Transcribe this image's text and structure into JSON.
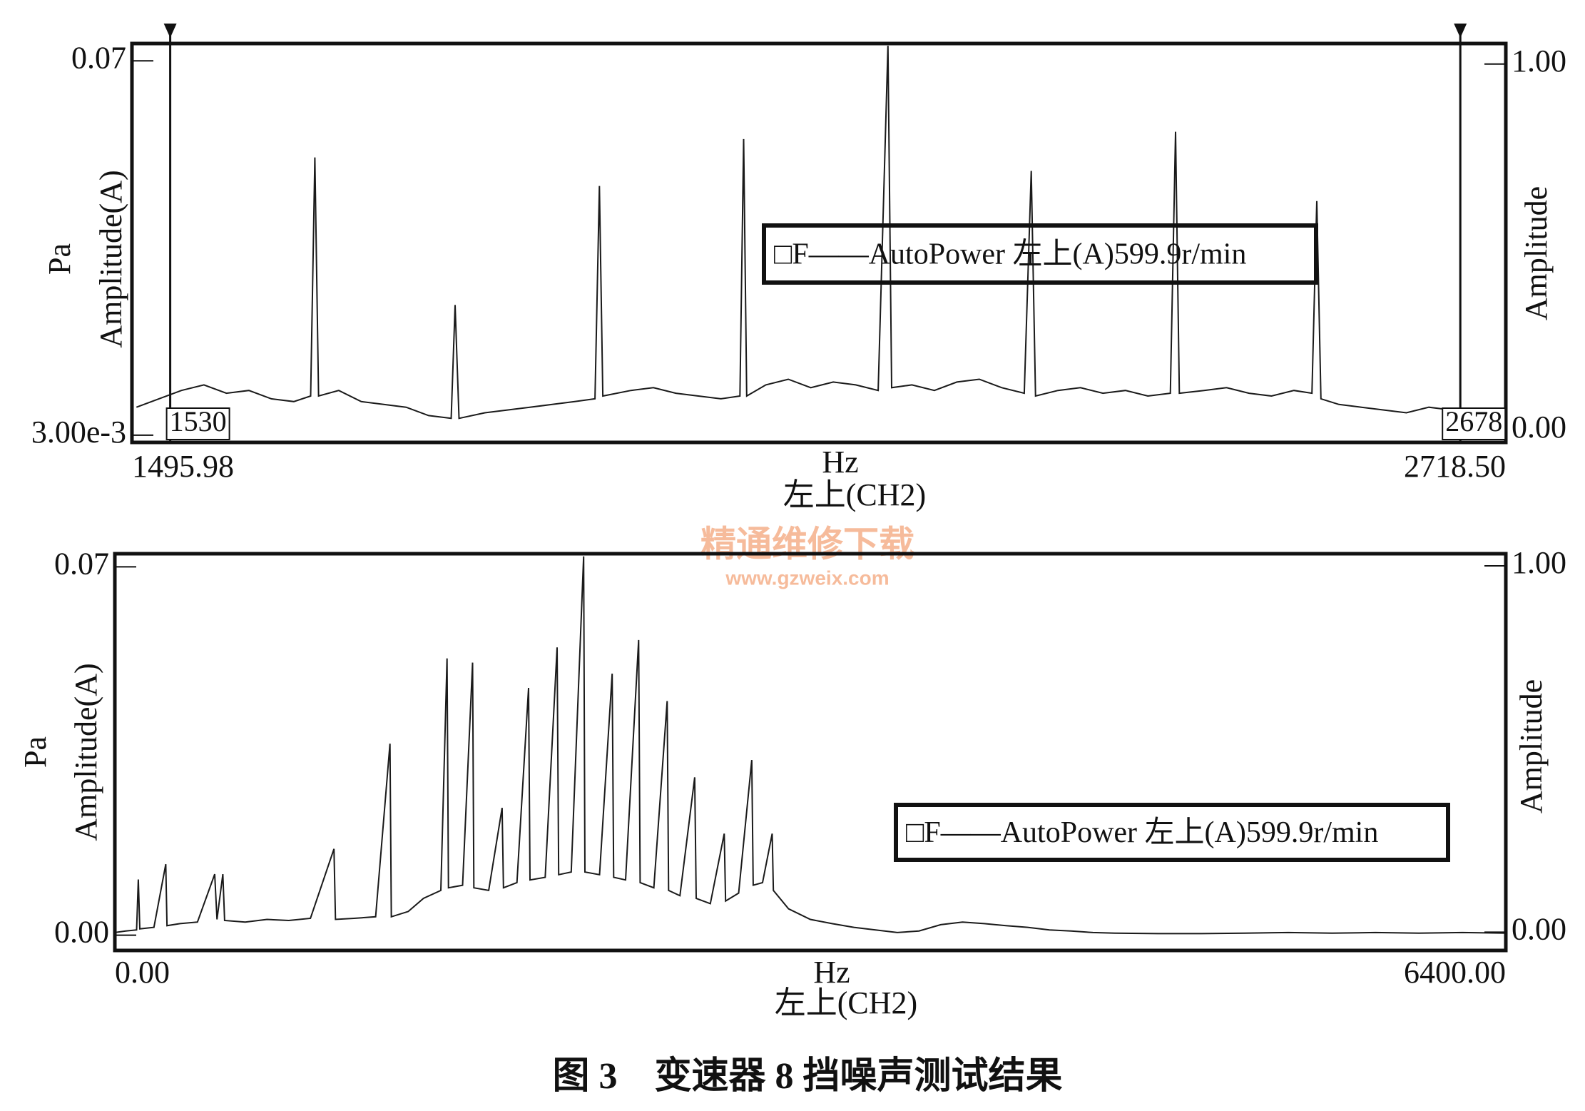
{
  "chart_data": [
    {
      "type": "line",
      "series": [
        {
          "name": "□F——AutoPower 左上(A)599.9r/min",
          "color": "#1a1a1a",
          "values": [
            0.008,
            0.0095,
            0.011,
            0.012,
            0.0105,
            0.011,
            0.0095,
            0.009,
            0.01,
            0.0527,
            0.01,
            0.011,
            0.009,
            0.0085,
            0.008,
            0.0065,
            0.006,
            0.0263,
            0.006,
            0.007,
            0.0075,
            0.008,
            0.0085,
            0.009,
            0.0095,
            0.0476,
            0.01,
            0.011,
            0.0115,
            0.0105,
            0.01,
            0.0095,
            0.01,
            0.056,
            0.01,
            0.012,
            0.013,
            0.0115,
            0.0125,
            0.012,
            0.011,
            0.0727,
            0.0115,
            0.012,
            0.011,
            0.0125,
            0.013,
            0.0115,
            0.0105,
            0.0503,
            0.01,
            0.011,
            0.0115,
            0.0105,
            0.011,
            0.01,
            0.0105,
            0.0573,
            0.0105,
            0.011,
            0.0115,
            0.0105,
            0.01,
            0.011,
            0.0105,
            0.0449,
            0.0095,
            0.0085,
            0.008,
            0.0075,
            0.007,
            0.008,
            0.0075,
            0.007,
            0.0075
          ]
        }
      ],
      "x": [
        1500,
        1520,
        1540,
        1560,
        1580,
        1600,
        1620,
        1640,
        1655,
        1658.7,
        1662,
        1680,
        1700,
        1720,
        1740,
        1760,
        1780,
        1783.5,
        1787,
        1810,
        1830,
        1850,
        1870,
        1890,
        1908,
        1911.9,
        1915,
        1940,
        1960,
        1980,
        2000,
        2020,
        2037,
        2040.3,
        2043,
        2060,
        2080,
        2100,
        2120,
        2140,
        2160,
        2168.7,
        2172,
        2190,
        2210,
        2230,
        2250,
        2270,
        2290,
        2296.2,
        2300,
        2320,
        2340,
        2360,
        2380,
        2400,
        2420,
        2424.6,
        2428,
        2450,
        2470,
        2490,
        2510,
        2530,
        2546,
        2550.3,
        2554,
        2570,
        2590,
        2610,
        2630,
        2650,
        2670,
        2690,
        2710
      ],
      "xlim": [
        1495.98,
        2718.5
      ],
      "xticks": [
        1495.98,
        {
          "value": 2718.5,
          "label": "2718.50"
        }
      ],
      "ylim": [
        0.0017,
        0.0731
      ],
      "yticks": [
        {
          "value": 0.003,
          "label": "3.00e-3"
        },
        0.07
      ],
      "y2lim": [
        -0.033,
        1.056
      ],
      "y2ticks": [
        {
          "value": 0,
          "label": "0.00"
        },
        {
          "value": 1,
          "label": "1.00"
        }
      ],
      "x_label": "Hz",
      "x_sublabel": "左上(CH2)",
      "y_unit": "Pa",
      "y_label": "Amplitude(A)",
      "y2_label": "Amplitude",
      "cursors": [
        1530,
        2678
      ],
      "grid": false
    },
    {
      "type": "line",
      "series": [
        {
          "name": "□F——AutoPower 左上(A)599.9r/min",
          "color": "#1a1a1a",
          "values": [
            0.0005,
            0.0008,
            0.001,
            0.0106,
            0.0012,
            0.0015,
            0.0135,
            0.0018,
            0.0022,
            0.0025,
            0.0116,
            0.003,
            0.0116,
            0.0028,
            0.0025,
            0.003,
            0.0028,
            0.0032,
            0.0164,
            0.003,
            0.0032,
            0.0035,
            0.0364,
            0.0035,
            0.0045,
            0.007,
            0.0085,
            0.0526,
            0.009,
            0.0095,
            0.0518,
            0.009,
            0.0085,
            0.0242,
            0.009,
            0.01,
            0.047,
            0.0105,
            0.011,
            0.0547,
            0.0115,
            0.012,
            0.072,
            0.012,
            0.0115,
            0.0497,
            0.011,
            0.0105,
            0.0561,
            0.01,
            0.009,
            0.0445,
            0.0085,
            0.0075,
            0.03,
            0.007,
            0.006,
            0.0193,
            0.0065,
            0.008,
            0.0333,
            0.0095,
            0.01,
            0.0193,
            0.0085,
            0.005,
            0.003,
            0.0022,
            0.0015,
            0.001,
            0.0005,
            0.0008,
            0.002,
            0.0025,
            0.0022,
            0.0018,
            0.0015,
            0.001,
            0.0008,
            0.0005,
            0.0004,
            0.0003,
            0.0003,
            0.0004,
            0.0005,
            0.0004,
            0.0005,
            0.0004,
            0.0005,
            0.0004
          ]
        }
      ],
      "x": [
        0,
        50,
        100,
        107.9,
        115,
        180,
        234.5,
        240,
        300,
        380,
        459.5,
        470,
        497,
        505,
        600,
        700,
        800,
        900,
        1008.2,
        1015,
        1100,
        1200,
        1266,
        1272,
        1350,
        1420,
        1500,
        1528.6,
        1535,
        1600,
        1645.8,
        1652,
        1720,
        1781.8,
        1788,
        1850,
        1903.7,
        1910,
        1980,
        2035,
        2042,
        2100,
        2156.9,
        2163,
        2230,
        2288.2,
        2295,
        2350,
        2410.1,
        2417,
        2480,
        2541.4,
        2548,
        2600,
        2668,
        2675,
        2740,
        2804,
        2810,
        2870,
        2930.6,
        2937,
        2980,
        3024.4,
        3030,
        3100,
        3200,
        3300,
        3400,
        3500,
        3600,
        3700,
        3800,
        3900,
        4000,
        4100,
        4200,
        4300,
        4400,
        4500,
        4600,
        4800,
        5000,
        5200,
        5400,
        5600,
        5800,
        6000,
        6200,
        6400
      ],
      "xlim": [
        0,
        6400
      ],
      "xticks": [
        {
          "value": 0,
          "label": "0.00"
        },
        {
          "value": 6400,
          "label": "6400.00"
        }
      ],
      "ylim": [
        -0.0029,
        0.0725
      ],
      "yticks": [
        {
          "value": 0,
          "label": "0.00"
        },
        0.07
      ],
      "y2lim": [
        -0.05,
        1.033
      ],
      "y2ticks": [
        {
          "value": 0,
          "label": "0.00"
        },
        {
          "value": 1,
          "label": "1.00"
        }
      ],
      "x_label": "Hz",
      "x_sublabel": "左上(CH2)",
      "y_unit": "Pa",
      "y_label": "Amplitude(A)",
      "y2_label": "Amplitude",
      "grid": false
    }
  ],
  "watermark": {
    "title": "精通维修下载",
    "url": "www.gzweix.com"
  },
  "caption": "图 3　变速器 8 挡噪声测试结果"
}
